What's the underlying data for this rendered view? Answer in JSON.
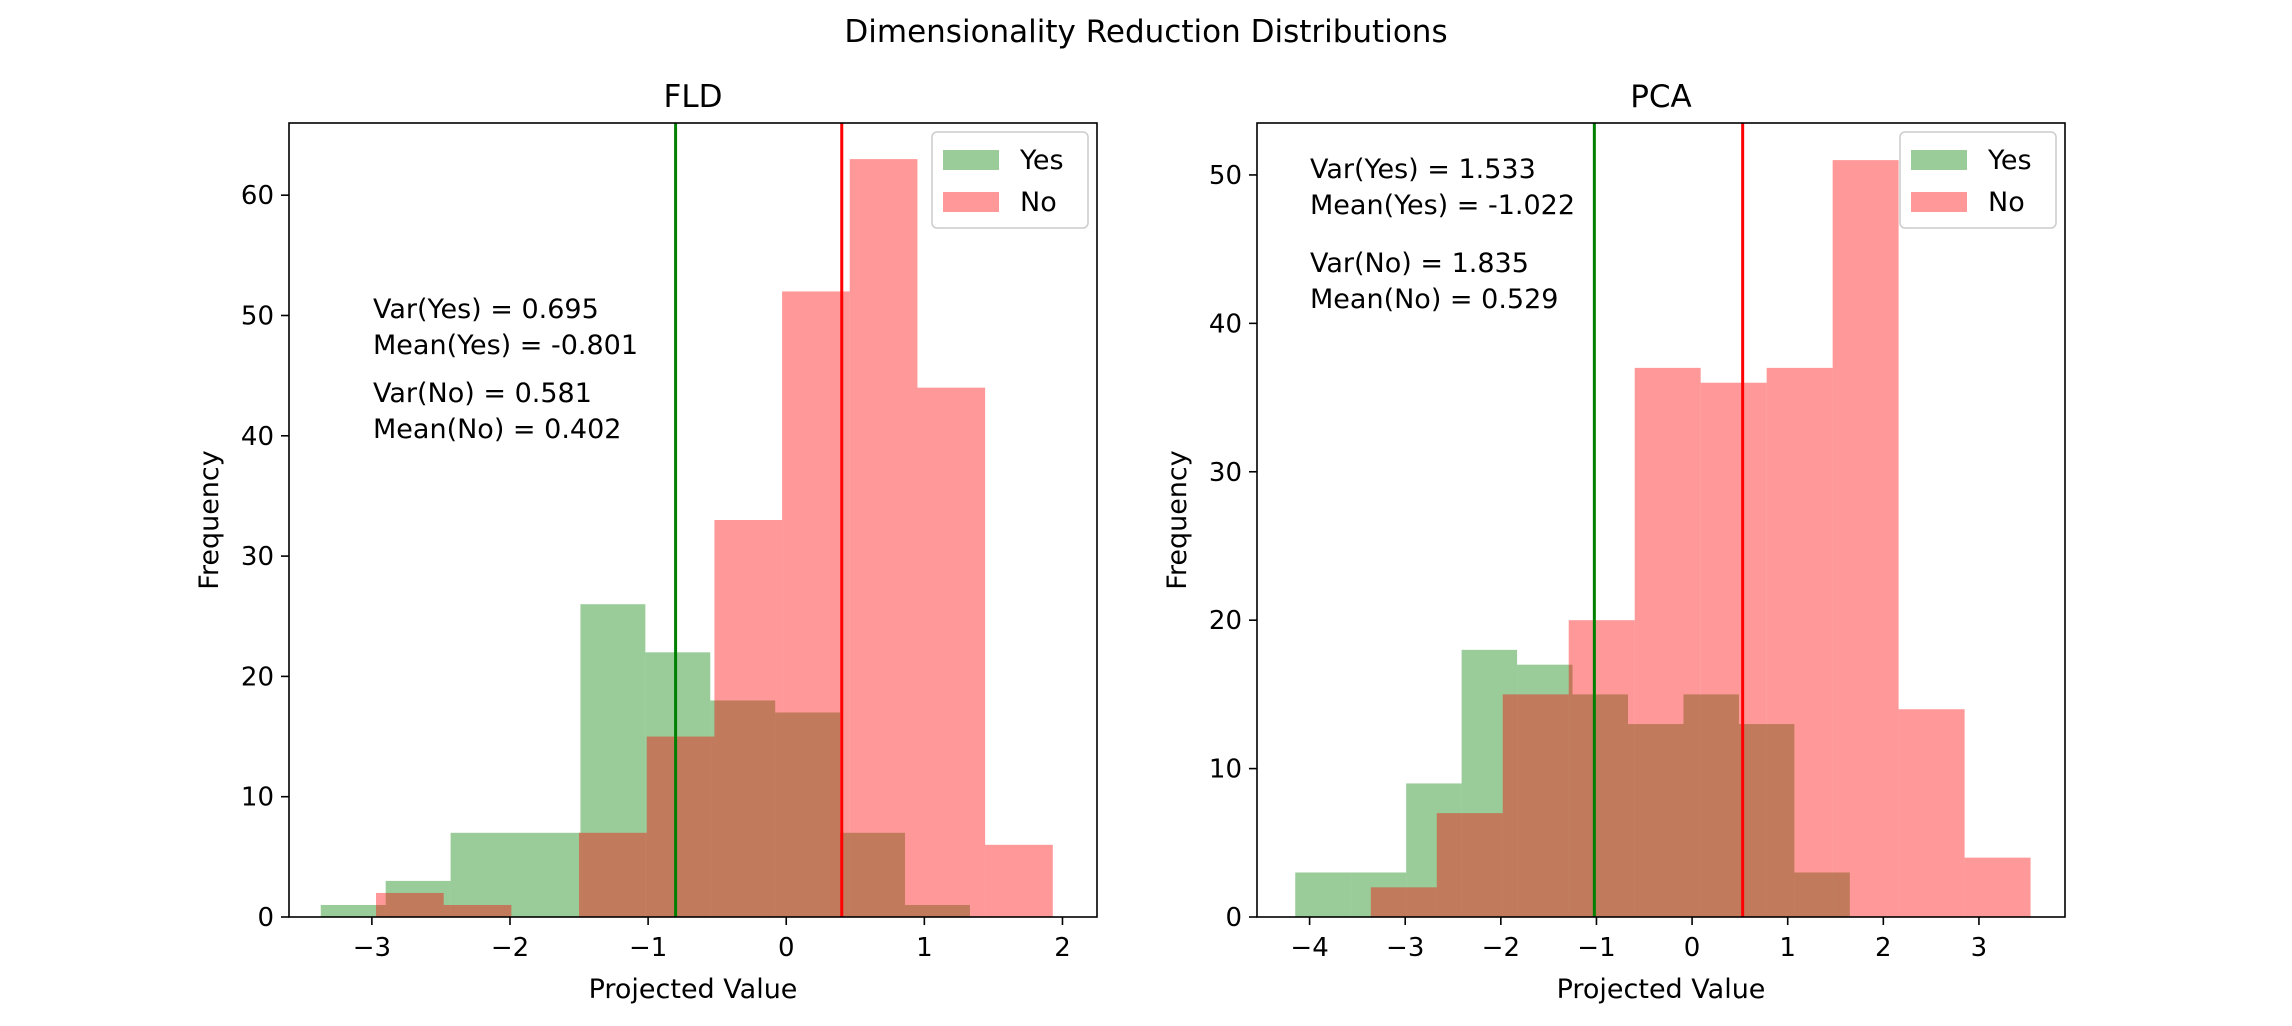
{
  "figure_title": "Dimensionality Reduction Distributions",
  "colors": {
    "yes": "#99cc99",
    "no": "#ff9999",
    "overlap": "#c27d5c",
    "yes_mean_line": "#008000",
    "no_mean_line": "#ff0000"
  },
  "chart_data": [
    {
      "type": "bar",
      "title": "FLD",
      "xlabel": "Projected Value",
      "ylabel": "Frequency",
      "xlim": [
        -3.6,
        2.25
      ],
      "ylim": [
        0,
        66
      ],
      "xticks": [
        -3,
        -2,
        -1,
        0,
        1,
        2
      ],
      "xtick_labels": [
        "−3",
        "−2",
        "−1",
        "0",
        "1",
        "2"
      ],
      "yticks": [
        0,
        10,
        20,
        30,
        40,
        50,
        60
      ],
      "ytick_labels": [
        "0",
        "10",
        "20",
        "30",
        "40",
        "50",
        "60"
      ],
      "legend": {
        "placement": "top-right",
        "entries": [
          "Yes",
          "No"
        ]
      },
      "series": [
        {
          "name": "Yes",
          "bin_edges": [
            -3.37,
            -2.9,
            -2.43,
            -1.96,
            -1.49,
            -1.02,
            -0.55,
            -0.08,
            0.39,
            0.86,
            1.33
          ],
          "counts": [
            1,
            3,
            7,
            7,
            26,
            22,
            18,
            17,
            7,
            1
          ]
        },
        {
          "name": "No",
          "bin_edges": [
            -2.97,
            -2.48,
            -1.99,
            -1.5,
            -1.01,
            -0.52,
            -0.03,
            0.46,
            0.95,
            1.44,
            1.93
          ],
          "counts": [
            2,
            1,
            0,
            7,
            15,
            33,
            52,
            63,
            44,
            6
          ]
        }
      ],
      "mean_lines": [
        {
          "series": "Yes",
          "x": -0.801
        },
        {
          "series": "No",
          "x": 0.402
        }
      ],
      "annotations": {
        "var_yes": "Var(Yes) = 0.695",
        "mean_yes": "Mean(Yes) = -0.801",
        "var_no": "Var(No) = 0.581",
        "mean_no": "Mean(No) = 0.402"
      }
    },
    {
      "type": "bar",
      "title": "PCA",
      "xlabel": "Projected Value",
      "ylabel": "Frequency",
      "xlim": [
        -4.55,
        3.9
      ],
      "ylim": [
        0,
        53.5
      ],
      "xticks": [
        -4,
        -3,
        -2,
        -1,
        0,
        1,
        2,
        3
      ],
      "xtick_labels": [
        "−4",
        "−3",
        "−2",
        "−1",
        "0",
        "1",
        "2",
        "3"
      ],
      "yticks": [
        0,
        10,
        20,
        30,
        40,
        50
      ],
      "ytick_labels": [
        "0",
        "10",
        "20",
        "30",
        "40",
        "50"
      ],
      "legend": {
        "placement": "top-right",
        "entries": [
          "Yes",
          "No"
        ]
      },
      "series": [
        {
          "name": "Yes",
          "bin_edges": [
            -4.15,
            -3.57,
            -2.99,
            -2.41,
            -1.83,
            -1.25,
            -0.67,
            -0.09,
            0.49,
            1.07,
            1.65
          ],
          "counts": [
            3,
            3,
            9,
            18,
            17,
            15,
            13,
            15,
            13,
            3
          ]
        },
        {
          "name": "No",
          "bin_edges": [
            -3.36,
            -2.67,
            -1.98,
            -1.29,
            -0.6,
            0.09,
            0.78,
            1.47,
            2.16,
            2.85,
            3.54
          ],
          "counts": [
            2,
            7,
            15,
            20,
            37,
            36,
            37,
            51,
            14,
            4
          ]
        }
      ],
      "mean_lines": [
        {
          "series": "Yes",
          "x": -1.022
        },
        {
          "series": "No",
          "x": 0.529
        }
      ],
      "annotations": {
        "var_yes": "Var(Yes) = 1.533",
        "mean_yes": "Mean(Yes) = -1.022",
        "var_no": "Var(No) = 1.835",
        "mean_no": "Mean(No) = 0.529"
      }
    }
  ]
}
